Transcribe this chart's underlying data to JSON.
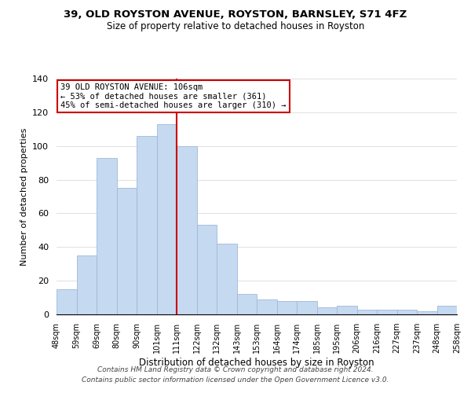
{
  "title": "39, OLD ROYSTON AVENUE, ROYSTON, BARNSLEY, S71 4FZ",
  "subtitle": "Size of property relative to detached houses in Royston",
  "xlabel": "Distribution of detached houses by size in Royston",
  "ylabel": "Number of detached properties",
  "bar_labels": [
    "48sqm",
    "59sqm",
    "69sqm",
    "80sqm",
    "90sqm",
    "101sqm",
    "111sqm",
    "122sqm",
    "132sqm",
    "143sqm",
    "153sqm",
    "164sqm",
    "174sqm",
    "185sqm",
    "195sqm",
    "206sqm",
    "216sqm",
    "227sqm",
    "237sqm",
    "248sqm",
    "258sqm"
  ],
  "bar_values": [
    15,
    35,
    93,
    75,
    106,
    113,
    100,
    53,
    42,
    12,
    9,
    8,
    8,
    4,
    5,
    3,
    3,
    3,
    2,
    5
  ],
  "bar_color": "#c5d9f1",
  "bar_edge_color": "#a0b8d8",
  "vline_x": 6,
  "vline_color": "#cc0000",
  "ylim": [
    0,
    140
  ],
  "annotation_text": "39 OLD ROYSTON AVENUE: 106sqm\n← 53% of detached houses are smaller (361)\n45% of semi-detached houses are larger (310) →",
  "annotation_box_color": "#ffffff",
  "annotation_box_edge": "#cc0000",
  "footer_line1": "Contains HM Land Registry data © Crown copyright and database right 2024.",
  "footer_line2": "Contains public sector information licensed under the Open Government Licence v3.0."
}
